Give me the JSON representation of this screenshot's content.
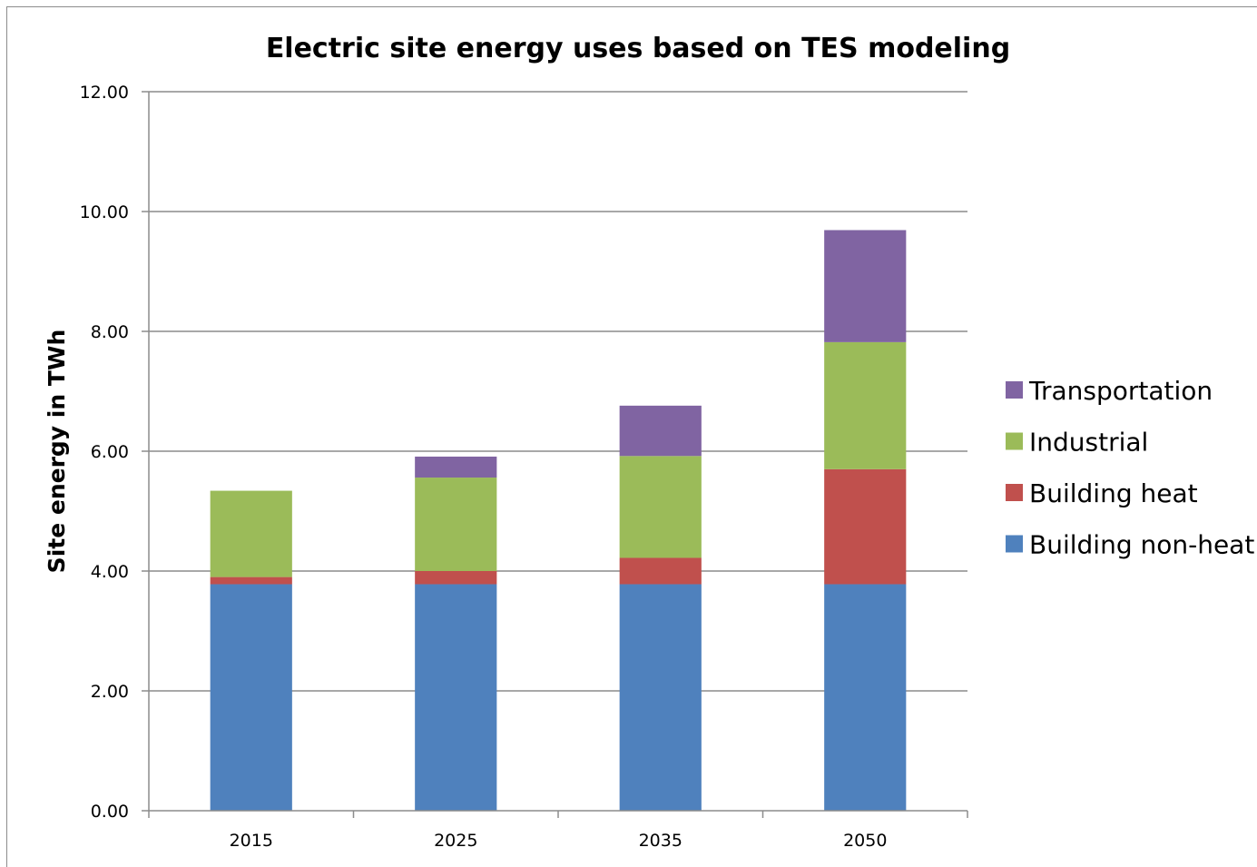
{
  "chart_data": {
    "type": "bar",
    "stacked": true,
    "title": "Electric site energy uses based on TES modeling",
    "xlabel": "",
    "ylabel": "Site energy in TWh",
    "ylim": [
      0,
      12
    ],
    "yticks": [
      "0.00",
      "2.00",
      "4.00",
      "6.00",
      "8.00",
      "10.00",
      "12.00"
    ],
    "grid": true,
    "legend_position": "right",
    "categories": [
      "2015",
      "2025",
      "2035",
      "2050"
    ],
    "series": [
      {
        "name": "Building non-heat",
        "color": "#4f81bd",
        "values": [
          3.78,
          3.78,
          3.78,
          3.78
        ]
      },
      {
        "name": "Building heat",
        "color": "#c0504d",
        "values": [
          0.12,
          0.22,
          0.44,
          1.92
        ]
      },
      {
        "name": "Industrial",
        "color": "#9bbb59",
        "values": [
          1.44,
          1.56,
          1.7,
          2.12
        ]
      },
      {
        "name": "Transportation",
        "color": "#8064a2",
        "values": [
          0.0,
          0.35,
          0.84,
          1.87
        ]
      }
    ]
  }
}
